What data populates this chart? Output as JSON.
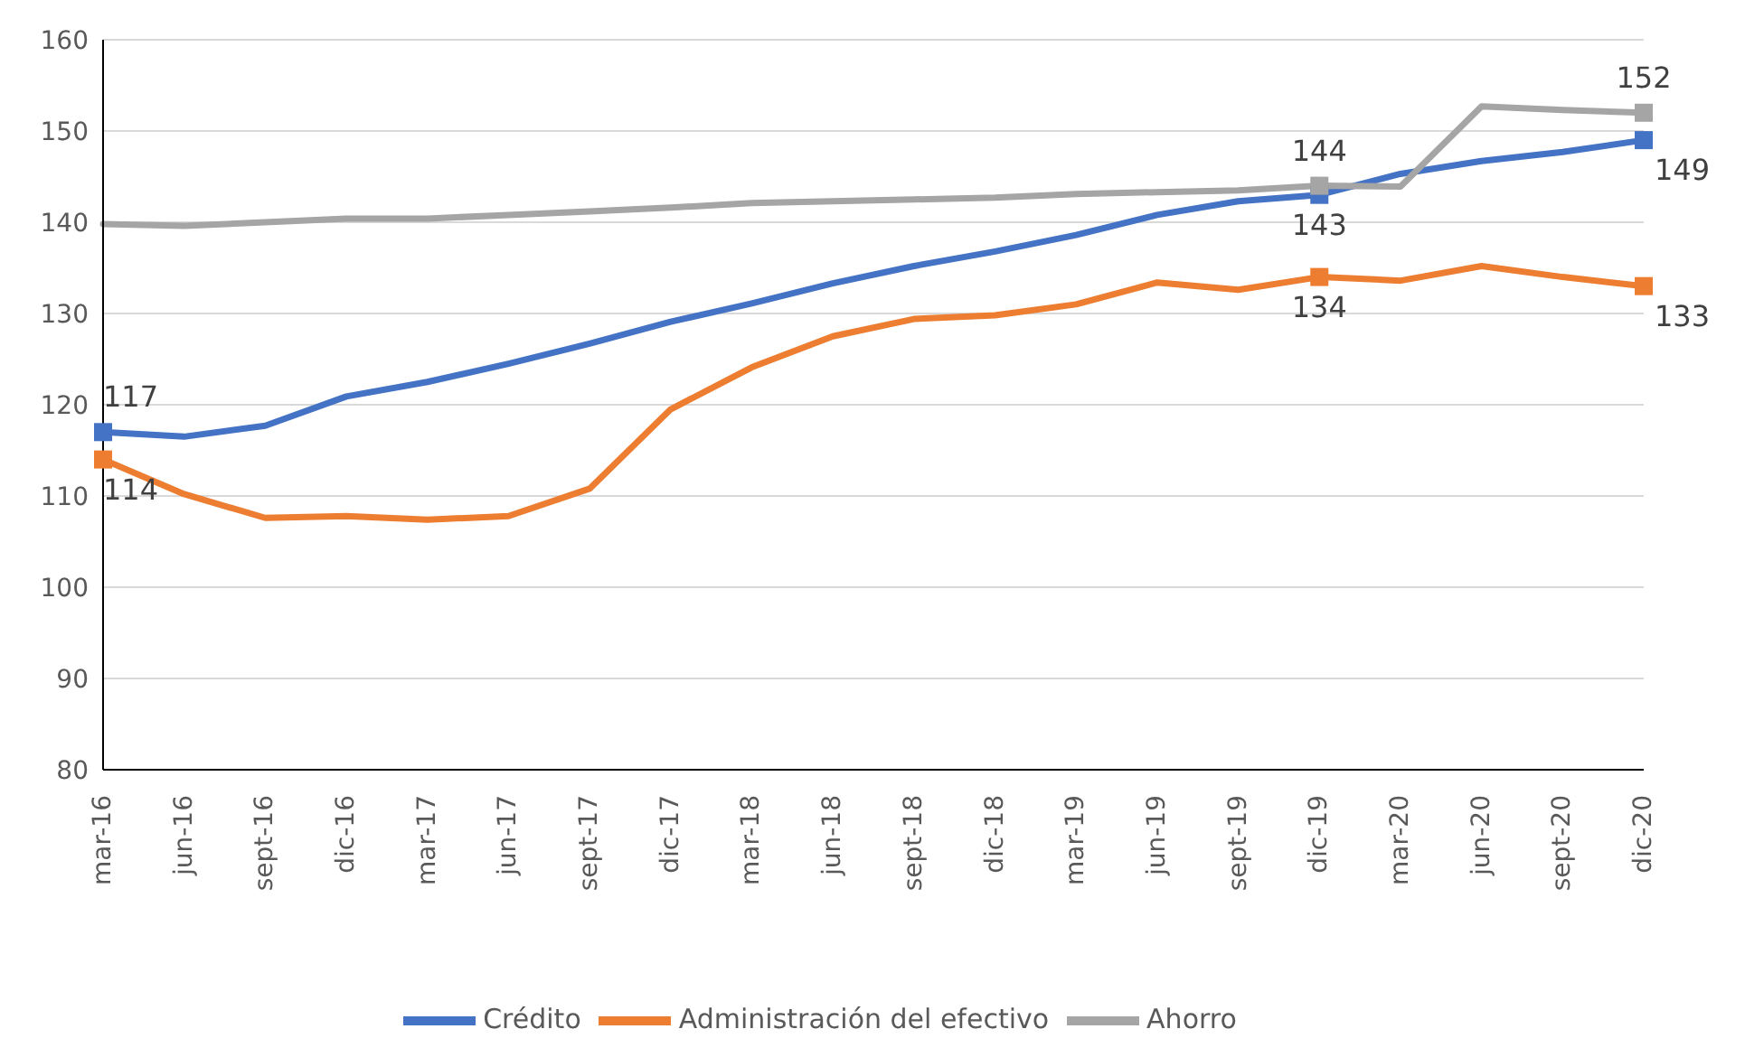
{
  "chart_data": {
    "type": "line",
    "categories": [
      "mar-16",
      "jun-16",
      "sept-16",
      "dic-16",
      "mar-17",
      "jun-17",
      "sept-17",
      "dic-17",
      "mar-18",
      "jun-18",
      "sept-18",
      "dic-18",
      "mar-19",
      "jun-19",
      "sept-19",
      "dic-19",
      "mar-20",
      "jun-20",
      "sept-20",
      "dic-20"
    ],
    "series": [
      {
        "name": "Crédito",
        "color": "#4472c4",
        "values": [
          117,
          116.5,
          117.7,
          120.9,
          122.5,
          124.5,
          126.7,
          129.1,
          131.1,
          133.3,
          135.2,
          136.8,
          138.6,
          140.8,
          142.3,
          143,
          145.3,
          146.7,
          147.7,
          149
        ],
        "value_labels": [
          "117",
          null,
          null,
          null,
          null,
          null,
          null,
          null,
          null,
          null,
          null,
          null,
          null,
          null,
          null,
          "143",
          null,
          null,
          null,
          "149"
        ]
      },
      {
        "name": "Administración del efectivo",
        "color": "#ed7d31",
        "values": [
          114,
          110.2,
          107.6,
          107.8,
          107.4,
          107.8,
          110.8,
          119.5,
          124.1,
          127.5,
          129.4,
          129.8,
          131,
          133.4,
          132.6,
          134,
          133.6,
          135.2,
          134,
          133
        ],
        "value_labels": [
          "114",
          null,
          null,
          null,
          null,
          null,
          null,
          null,
          null,
          null,
          null,
          null,
          null,
          null,
          null,
          "134",
          null,
          null,
          null,
          "133"
        ]
      },
      {
        "name": "Ahorro",
        "color": "#a5a5a5",
        "values": [
          139.8,
          139.6,
          140,
          140.4,
          140.4,
          140.8,
          141.2,
          141.6,
          142.1,
          142.3,
          142.5,
          142.7,
          143.1,
          143.3,
          143.5,
          144,
          143.9,
          152.7,
          152.3,
          152
        ],
        "value_labels": [
          null,
          null,
          null,
          null,
          null,
          null,
          null,
          null,
          null,
          null,
          null,
          null,
          null,
          null,
          null,
          "144",
          null,
          null,
          null,
          "152"
        ]
      }
    ],
    "ylim": [
      80,
      160
    ],
    "yticks": [
      80,
      90,
      100,
      110,
      120,
      130,
      140,
      150,
      160
    ],
    "grid": "y",
    "legend": "bottom",
    "line_style": "solid"
  }
}
